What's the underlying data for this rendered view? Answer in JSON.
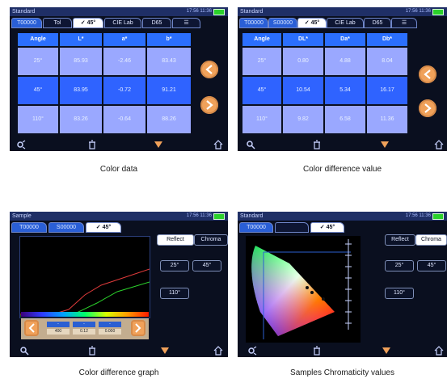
{
  "panels": [
    {
      "status": "Standard",
      "time": "17:56 11:36",
      "tabs": [
        "T00000",
        "Tol",
        "✓ 45°",
        "CIE Lab",
        "D65",
        "☰"
      ],
      "table": {
        "headers": [
          "Angle",
          "L*",
          "a*",
          "b*"
        ],
        "rows": [
          [
            "25°",
            "85.93",
            "-2.46",
            "83.43"
          ],
          [
            "45°",
            "83.95",
            "-0.72",
            "91.21"
          ],
          [
            "110°",
            "83.26",
            "-0.64",
            "88.26"
          ]
        ]
      },
      "caption": "Color data"
    },
    {
      "status": "Standard",
      "time": "17:56 11:36",
      "tabs": [
        "T00000",
        "S00000",
        "✓ 45°",
        "CIE Lab",
        "D65",
        "☰"
      ],
      "table": {
        "headers": [
          "Angle",
          "DL*",
          "Da*",
          "Db*"
        ],
        "rows": [
          [
            "25°",
            "0.80",
            "4.88",
            "8.04"
          ],
          [
            "45°",
            "10.54",
            "5.34",
            "16.17"
          ],
          [
            "110°",
            "9.82",
            "6.58",
            "11.36"
          ]
        ]
      },
      "caption": "Color difference value"
    },
    {
      "status": "Sample",
      "time": "17:56 11:36",
      "tabs": [
        "T00000",
        "S00000",
        "✓ 45°"
      ],
      "buttons": [
        "Reflect",
        "Chroma",
        "25°",
        "45°",
        "110°"
      ],
      "mini_table": {
        "headers": [
          "-",
          "-",
          "-"
        ],
        "values": [
          "400",
          "0.12",
          "0.000"
        ]
      },
      "caption": "Color difference graph"
    },
    {
      "status": "Standard",
      "time": "17:56 11:36",
      "tabs": [
        "T00000",
        "",
        "✓ 45°"
      ],
      "buttons": [
        "Reflect",
        "Chroma",
        "25°",
        "45°",
        "110°"
      ],
      "caption": "Samples Chromaticity values"
    }
  ]
}
